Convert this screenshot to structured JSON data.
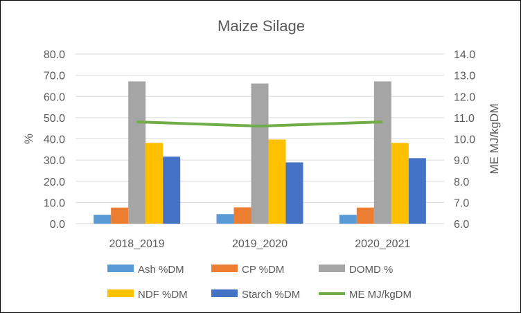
{
  "chart_data": {
    "type": "bar",
    "title": "Maize Silage",
    "categories": [
      "2018_2019",
      "2019_2020",
      "2020_2021"
    ],
    "series": [
      {
        "name": "Ash %DM",
        "values": [
          4.2,
          4.5,
          4.2
        ],
        "color": "#5B9BD5",
        "axis": "left"
      },
      {
        "name": "CP %DM",
        "values": [
          7.6,
          7.7,
          7.6
        ],
        "color": "#ED7D31",
        "axis": "left"
      },
      {
        "name": "DOMD %",
        "values": [
          67.1,
          66.1,
          67.1
        ],
        "color": "#A5A5A5",
        "axis": "left"
      },
      {
        "name": "NDF %DM",
        "values": [
          38.1,
          39.7,
          38.1
        ],
        "color": "#FFC000",
        "axis": "left"
      },
      {
        "name": "Starch %DM",
        "values": [
          31.6,
          28.9,
          30.9
        ],
        "color": "#4472C4",
        "axis": "left"
      }
    ],
    "line_series": [
      {
        "name": "ME MJ/kgDM",
        "values": [
          10.8,
          10.6,
          10.8
        ],
        "color": "#70AD47",
        "axis": "right"
      }
    ],
    "ylabel": "%",
    "y2label": "ME MJ/kgDM",
    "ylim": [
      0,
      80
    ],
    "y2lim": [
      6,
      14
    ],
    "yticks": [
      "0.0",
      "10.0",
      "20.0",
      "30.0",
      "40.0",
      "50.0",
      "60.0",
      "70.0",
      "80.0"
    ],
    "y2ticks": [
      "6.0",
      "7.0",
      "8.0",
      "9.0",
      "10.0",
      "11.0",
      "12.0",
      "13.0",
      "14.0"
    ],
    "grid": true,
    "legend_position": "bottom"
  }
}
